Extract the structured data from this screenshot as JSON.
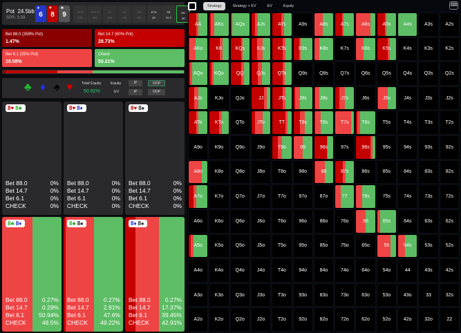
{
  "colors": {
    "bet88": "#8a0000",
    "bet14": "#c40000",
    "bet6": "#ef4444",
    "check": "#5cbd64"
  },
  "header": {
    "pot_label": "Pot",
    "pot_value": "24.5bb",
    "spr": "SPR: 3.59",
    "board": [
      {
        "rank": "6",
        "suit": "♦",
        "color": "#2436c8"
      },
      {
        "rank": "8",
        "suit": "♥",
        "color": "#c00000"
      },
      {
        "rank": "9",
        "suit": "♣",
        "color": "#555"
      }
    ],
    "seats": [
      {
        "pos": "UTG",
        "stack": "100"
      },
      {
        "pos": "UTG+1",
        "stack": "100"
      },
      {
        "pos": "LJ",
        "stack": "100"
      },
      {
        "pos": "HJ",
        "stack": "100"
      },
      {
        "pos": "CO",
        "stack": "100"
      },
      {
        "pos": "BTN",
        "stack": "88"
      },
      {
        "pos": "SB",
        "stack": "99.5"
      },
      {
        "pos": "BB",
        "stack": "88"
      }
    ]
  },
  "actions": [
    {
      "label": "Bet 88.0 (359% Pot)",
      "value": "1.47%",
      "pct": 1.47
    },
    {
      "label": "Bet 14.7 (60% Pot)",
      "value": "28.73%",
      "pct": 28.73
    },
    {
      "label": "Bet 6.1 (25% Pot)",
      "value": "19.58%",
      "pct": 19.58
    },
    {
      "label": "Check",
      "value": "50.21%",
      "pct": 50.21
    }
  ],
  "equity_panel": {
    "suits": [
      "♣",
      "♦",
      "♠",
      "♥"
    ],
    "total_equity_label": "Total Equity",
    "total_equity": "50.92%",
    "equity_label": "Equity",
    "ev_label": "EV",
    "ip": "IP",
    "oop": "OOP"
  },
  "combos": [
    {
      "cards": [
        {
          "t": "8♥",
          "c": "#c00000"
        },
        {
          "t": "8♣",
          "c": "#22aa22"
        }
      ],
      "rows": [
        [
          "Bet 88.0",
          "0%"
        ],
        [
          "Bet 14.7",
          "0%"
        ],
        [
          "Bet 6.1",
          "0%"
        ],
        [
          "CHECK",
          "0%"
        ]
      ],
      "mix": [
        0,
        0,
        0,
        0
      ]
    },
    {
      "cards": [
        {
          "t": "8♥",
          "c": "#c00000"
        },
        {
          "t": "8♦",
          "c": "#1a2ad0"
        }
      ],
      "rows": [
        [
          "Bet 88.0",
          "0%"
        ],
        [
          "Bet 14.7",
          "0%"
        ],
        [
          "Bet 6.1",
          "0%"
        ],
        [
          "CHECK",
          "0%"
        ]
      ],
      "mix": [
        0,
        0,
        0,
        0
      ]
    },
    {
      "cards": [
        {
          "t": "8♥",
          "c": "#c00000"
        },
        {
          "t": "8♠",
          "c": "#222"
        }
      ],
      "rows": [
        [
          "Bet 88.0",
          "0%"
        ],
        [
          "Bet 14.7",
          "0%"
        ],
        [
          "Bet 6.1",
          "0%"
        ],
        [
          "CHECK",
          "0%"
        ]
      ],
      "mix": [
        0,
        0,
        0,
        0
      ]
    },
    {
      "cards": [
        {
          "t": "8♣",
          "c": "#22aa22"
        },
        {
          "t": "8♦",
          "c": "#1a2ad0"
        }
      ],
      "rows": [
        [
          "Bet 88.0",
          "0.27%"
        ],
        [
          "Bet 14.7",
          "0.29%"
        ],
        [
          "Bet 6.1",
          "50.94%"
        ],
        [
          "CHECK",
          "48.5%"
        ]
      ],
      "mix": [
        0.27,
        0.29,
        50.94,
        48.5
      ]
    },
    {
      "cards": [
        {
          "t": "8♣",
          "c": "#22aa22"
        },
        {
          "t": "8♠",
          "c": "#222"
        }
      ],
      "rows": [
        [
          "Bet 88.0",
          "0.27%"
        ],
        [
          "Bet 14.7",
          "2.91%"
        ],
        [
          "Bet 6.1",
          "47.6%"
        ],
        [
          "CHECK",
          "49.22%"
        ]
      ],
      "mix": [
        0.27,
        2.91,
        47.6,
        49.22
      ]
    },
    {
      "cards": [
        {
          "t": "8♦",
          "c": "#1a2ad0"
        },
        {
          "t": "8♠",
          "c": "#222"
        }
      ],
      "rows": [
        [
          "Bet 88.0",
          "0.27%"
        ],
        [
          "Bet 14.7",
          "17.37%"
        ],
        [
          "Bet 6.1",
          "39.45%"
        ],
        [
          "CHECK",
          "42.91%"
        ]
      ],
      "mix": [
        0.27,
        17.37,
        39.45,
        42.91
      ]
    }
  ],
  "tabs": [
    "Strategy",
    "Strategy + EV",
    "EV",
    "Equity"
  ],
  "grid": [
    [
      "AA",
      "AKs",
      "AQs",
      "AJs",
      "ATs",
      "A9s",
      "A8s",
      "A7s",
      "A6s",
      "A5s",
      "A4s",
      "A3s",
      "A2s"
    ],
    [
      "AKo",
      "KK",
      "KQs",
      "KJs",
      "KTs",
      "K9s",
      "K8s",
      "K7s",
      "K6s",
      "K5s",
      "K4s",
      "K3s",
      "K2s"
    ],
    [
      "AQo",
      "KQo",
      "QQ",
      "QJs",
      "QTs",
      "Q9s",
      "Q8s",
      "Q7s",
      "Q6s",
      "Q5s",
      "Q4s",
      "Q3s",
      "Q2s"
    ],
    [
      "AJo",
      "KJo",
      "QJo",
      "JJ",
      "JTs",
      "J9s",
      "J8s",
      "J7s",
      "J6s",
      "J5s",
      "J4s",
      "J3s",
      "J2s"
    ],
    [
      "ATo",
      "KTo",
      "QTo",
      "JTo",
      "TT",
      "T9s",
      "T8s",
      "T7s",
      "T6s",
      "T5s",
      "T4s",
      "T3s",
      "T2s"
    ],
    [
      "A9o",
      "K9o",
      "Q9o",
      "J9o",
      "T9o",
      "99",
      "98s",
      "97s",
      "96s",
      "95s",
      "94s",
      "93s",
      "92s"
    ],
    [
      "A8o",
      "K8o",
      "Q8o",
      "J8o",
      "T8o",
      "98o",
      "88",
      "87s",
      "86s",
      "85s",
      "84s",
      "83s",
      "82s"
    ],
    [
      "A7o",
      "K7o",
      "Q7o",
      "J7o",
      "T7o",
      "97o",
      "87o",
      "77",
      "76s",
      "75s",
      "74s",
      "73s",
      "72s"
    ],
    [
      "A6o",
      "K6o",
      "Q6o",
      "J6o",
      "T6o",
      "96o",
      "86o",
      "76o",
      "66",
      "65s",
      "64s",
      "63s",
      "62s"
    ],
    [
      "A5o",
      "K5o",
      "Q5o",
      "J5o",
      "T5o",
      "95o",
      "85o",
      "75o",
      "65o",
      "55",
      "54s",
      "53s",
      "52s"
    ],
    [
      "A4o",
      "K4o",
      "Q4o",
      "J4o",
      "T4o",
      "94o",
      "84o",
      "74o",
      "64o",
      "54o",
      "44",
      "43s",
      "42s"
    ],
    [
      "A3o",
      "K3o",
      "Q3o",
      "J3o",
      "T3o",
      "93o",
      "83o",
      "73o",
      "63o",
      "53o",
      "43o",
      "33",
      "32s"
    ],
    [
      "A2o",
      "K2o",
      "Q2o",
      "J2o",
      "T2o",
      "92o",
      "82o",
      "72o",
      "62o",
      "52o",
      "42o",
      "32o",
      "22"
    ]
  ],
  "strategy": {
    "AA": [
      0,
      40,
      10,
      50
    ],
    "AKs": [
      0,
      5,
      20,
      75
    ],
    "AQs": [
      0,
      5,
      5,
      90
    ],
    "AJs": [
      0,
      20,
      15,
      65
    ],
    "ATs": [
      0,
      45,
      15,
      40
    ],
    "A8s": [
      0,
      0,
      45,
      55
    ],
    "A7s": [
      0,
      35,
      10,
      55
    ],
    "A6s": [
      0,
      0,
      75,
      25
    ],
    "A5s": [
      0,
      40,
      10,
      50
    ],
    "A4s": [
      0,
      0,
      0,
      100
    ],
    "AKo": [
      0,
      5,
      30,
      65
    ],
    "KK": [
      0,
      55,
      15,
      30
    ],
    "KQs": [
      0,
      55,
      10,
      35
    ],
    "KJs": [
      0,
      30,
      30,
      40
    ],
    "KTs": [
      0,
      55,
      15,
      30
    ],
    "K9s": [
      0,
      30,
      10,
      60
    ],
    "K8s": [
      0,
      0,
      25,
      75
    ],
    "K6s": [
      0,
      0,
      40,
      60
    ],
    "K5s": [
      0,
      55,
      10,
      35
    ],
    "AQo": [
      0,
      8,
      12,
      80
    ],
    "KQo": [
      0,
      10,
      10,
      80
    ],
    "QQ": [
      0,
      55,
      15,
      30
    ],
    "QJs": [
      0,
      35,
      20,
      45
    ],
    "QTs": [
      0,
      55,
      10,
      35
    ],
    "AJo": [
      0,
      30,
      20,
      50
    ],
    "JJ": [
      0,
      65,
      15,
      20
    ],
    "JTs": [
      0,
      55,
      15,
      30
    ],
    "J9s": [
      0,
      10,
      25,
      65
    ],
    "J8s": [
      0,
      5,
      20,
      75
    ],
    "J7s": [
      0,
      20,
      30,
      50
    ],
    "J5s": [
      0,
      5,
      50,
      45
    ],
    "ATo": [
      0,
      40,
      10,
      50
    ],
    "KTo": [
      0,
      50,
      15,
      35
    ],
    "JTo": [
      0,
      20,
      40,
      40
    ],
    "TT": [
      0,
      70,
      10,
      20
    ],
    "T9s": [
      0,
      35,
      25,
      40
    ],
    "T8s": [
      0,
      5,
      30,
      65
    ],
    "T7s": [
      0,
      0,
      85,
      15
    ],
    "T6s": [
      0,
      5,
      15,
      80
    ],
    "T9o": [
      0,
      30,
      20,
      50
    ],
    "99": [
      0,
      0,
      50,
      50
    ],
    "98s": [
      0,
      65,
      5,
      30
    ],
    "96s": [
      0,
      75,
      10,
      15
    ],
    "A8o": [
      0,
      0,
      70,
      30
    ],
    "88": [
      0,
      5,
      50,
      45
    ],
    "87s": [
      0,
      40,
      15,
      45
    ],
    "A7o": [
      0,
      25,
      15,
      60
    ],
    "77": [
      0,
      0,
      30,
      70
    ],
    "76s": [
      0,
      0,
      30,
      70
    ],
    "66": [
      0,
      0,
      50,
      50
    ],
    "65s": [
      0,
      0,
      15,
      85
    ],
    "A5o": [
      0,
      10,
      15,
      75
    ],
    "55": [
      0,
      0,
      70,
      30
    ],
    "54s": [
      0,
      0,
      35,
      65
    ]
  }
}
